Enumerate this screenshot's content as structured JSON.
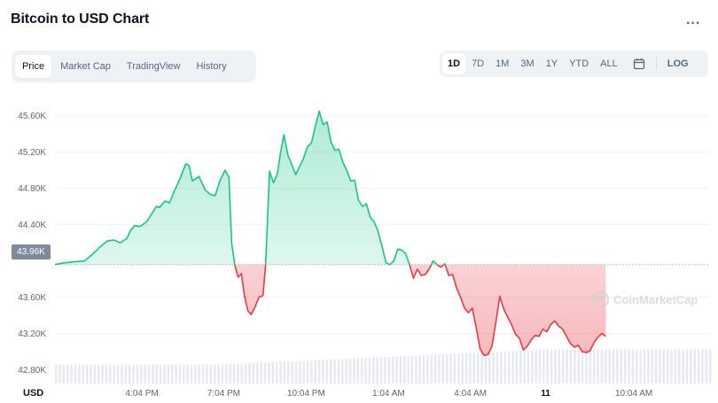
{
  "header": {
    "title": "Bitcoin to USD Chart",
    "more_label": "..."
  },
  "tabs": [
    {
      "label": "Price",
      "active": true
    },
    {
      "label": "Market Cap",
      "active": false
    },
    {
      "label": "TradingView",
      "active": false
    },
    {
      "label": "History",
      "active": false
    }
  ],
  "ranges": [
    {
      "label": "1D",
      "active": true
    },
    {
      "label": "7D",
      "active": false
    },
    {
      "label": "1M",
      "active": false
    },
    {
      "label": "3M",
      "active": false
    },
    {
      "label": "1Y",
      "active": false
    },
    {
      "label": "YTD",
      "active": false
    },
    {
      "label": "ALL",
      "active": false
    }
  ],
  "calendar_icon": "calendar-icon",
  "log_label": "LOG",
  "watermark": {
    "text": "CoinMarketCap",
    "icon": "coinmarketcap-logo-icon"
  },
  "colors": {
    "up": "#16c784",
    "down": "#ea3943",
    "grid": "#eff2f5",
    "axis_text": "#58667e",
    "volume": "#cfd6e4"
  },
  "chart_data": {
    "type": "line",
    "currency_label": "USD",
    "open_price_label": "43.96K",
    "open_price": 43960,
    "ylim": [
      42650,
      45850
    ],
    "y_ticks": [
      {
        "value": 45600,
        "label": "45.60K"
      },
      {
        "value": 45200,
        "label": "45.20K"
      },
      {
        "value": 44800,
        "label": "44.80K"
      },
      {
        "value": 44400,
        "label": "44.40K"
      },
      {
        "value": 43600,
        "label": "43.60K"
      },
      {
        "value": 43200,
        "label": "43.20K"
      },
      {
        "value": 42800,
        "label": "42.80K"
      }
    ],
    "x_ticks": [
      {
        "t": 0.133,
        "label": "4:04 PM",
        "bold": false
      },
      {
        "t": 0.258,
        "label": "7:04 PM",
        "bold": false
      },
      {
        "t": 0.384,
        "label": "10:04 PM",
        "bold": false
      },
      {
        "t": 0.51,
        "label": "1:04 AM",
        "bold": false
      },
      {
        "t": 0.635,
        "label": "4:04 AM",
        "bold": false
      },
      {
        "t": 0.75,
        "label": "11",
        "bold": true
      },
      {
        "t": 0.885,
        "label": "10:04 AM",
        "bold": false
      }
    ],
    "series": [
      {
        "values": [
          [
            0.0,
            43960
          ],
          [
            0.015,
            43980
          ],
          [
            0.03,
            43990
          ],
          [
            0.045,
            44000
          ],
          [
            0.055,
            44060
          ],
          [
            0.07,
            44160
          ],
          [
            0.08,
            44220
          ],
          [
            0.09,
            44230
          ],
          [
            0.1,
            44200
          ],
          [
            0.11,
            44250
          ],
          [
            0.115,
            44330
          ],
          [
            0.122,
            44390
          ],
          [
            0.13,
            44380
          ],
          [
            0.14,
            44430
          ],
          [
            0.148,
            44520
          ],
          [
            0.155,
            44600
          ],
          [
            0.16,
            44590
          ],
          [
            0.168,
            44660
          ],
          [
            0.175,
            44640
          ],
          [
            0.182,
            44760
          ],
          [
            0.192,
            44920
          ],
          [
            0.2,
            45070
          ],
          [
            0.205,
            45050
          ],
          [
            0.21,
            44880
          ],
          [
            0.22,
            44930
          ],
          [
            0.23,
            44780
          ],
          [
            0.238,
            44730
          ],
          [
            0.245,
            44720
          ],
          [
            0.252,
            44880
          ],
          [
            0.26,
            45000
          ],
          [
            0.266,
            44920
          ],
          [
            0.27,
            44200
          ],
          [
            0.275,
            43950
          ],
          [
            0.28,
            43820
          ],
          [
            0.285,
            43860
          ],
          [
            0.29,
            43600
          ],
          [
            0.295,
            43450
          ],
          [
            0.3,
            43410
          ],
          [
            0.305,
            43480
          ],
          [
            0.312,
            43600
          ],
          [
            0.318,
            43620
          ],
          [
            0.322,
            43950
          ],
          [
            0.328,
            44990
          ],
          [
            0.334,
            44860
          ],
          [
            0.34,
            44960
          ],
          [
            0.345,
            45200
          ],
          [
            0.35,
            45390
          ],
          [
            0.356,
            45170
          ],
          [
            0.362,
            45060
          ],
          [
            0.368,
            44950
          ],
          [
            0.374,
            45040
          ],
          [
            0.38,
            45130
          ],
          [
            0.386,
            45260
          ],
          [
            0.392,
            45300
          ],
          [
            0.398,
            45480
          ],
          [
            0.404,
            45650
          ],
          [
            0.41,
            45500
          ],
          [
            0.416,
            45530
          ],
          [
            0.422,
            45310
          ],
          [
            0.428,
            45220
          ],
          [
            0.434,
            45230
          ],
          [
            0.44,
            45090
          ],
          [
            0.446,
            45000
          ],
          [
            0.452,
            44880
          ],
          [
            0.458,
            44890
          ],
          [
            0.464,
            44670
          ],
          [
            0.47,
            44600
          ],
          [
            0.476,
            44630
          ],
          [
            0.482,
            44480
          ],
          [
            0.488,
            44430
          ],
          [
            0.494,
            44320
          ],
          [
            0.5,
            44160
          ],
          [
            0.506,
            43980
          ],
          [
            0.512,
            43960
          ],
          [
            0.518,
            44000
          ],
          [
            0.524,
            44130
          ],
          [
            0.53,
            44120
          ],
          [
            0.536,
            44080
          ],
          [
            0.542,
            43960
          ],
          [
            0.548,
            43810
          ],
          [
            0.554,
            43910
          ],
          [
            0.56,
            43840
          ],
          [
            0.566,
            43850
          ],
          [
            0.572,
            43910
          ],
          [
            0.578,
            44000
          ],
          [
            0.584,
            43960
          ],
          [
            0.59,
            43930
          ],
          [
            0.596,
            43970
          ],
          [
            0.602,
            43840
          ],
          [
            0.608,
            43850
          ],
          [
            0.614,
            43700
          ],
          [
            0.62,
            43600
          ],
          [
            0.626,
            43480
          ],
          [
            0.632,
            43430
          ],
          [
            0.638,
            43480
          ],
          [
            0.644,
            43260
          ],
          [
            0.65,
            43030
          ],
          [
            0.656,
            42960
          ],
          [
            0.662,
            42970
          ],
          [
            0.668,
            43060
          ],
          [
            0.674,
            43320
          ],
          [
            0.68,
            43610
          ],
          [
            0.686,
            43470
          ],
          [
            0.692,
            43380
          ],
          [
            0.698,
            43300
          ],
          [
            0.704,
            43190
          ],
          [
            0.71,
            43150
          ],
          [
            0.716,
            43020
          ],
          [
            0.722,
            43060
          ],
          [
            0.728,
            43130
          ],
          [
            0.734,
            43180
          ],
          [
            0.74,
            43170
          ],
          [
            0.746,
            43250
          ],
          [
            0.752,
            43220
          ],
          [
            0.758,
            43300
          ],
          [
            0.764,
            43340
          ],
          [
            0.77,
            43280
          ],
          [
            0.776,
            43250
          ],
          [
            0.782,
            43170
          ],
          [
            0.788,
            43090
          ],
          [
            0.794,
            43050
          ],
          [
            0.8,
            43070
          ],
          [
            0.806,
            43000
          ],
          [
            0.812,
            42990
          ],
          [
            0.818,
            43010
          ],
          [
            0.824,
            43100
          ],
          [
            0.83,
            43160
          ],
          [
            0.836,
            43200
          ],
          [
            0.842,
            43170
          ]
        ]
      }
    ],
    "volume": {
      "start_level": 0.42,
      "end_level": 0.75,
      "bars": 170
    },
    "grid": true
  }
}
